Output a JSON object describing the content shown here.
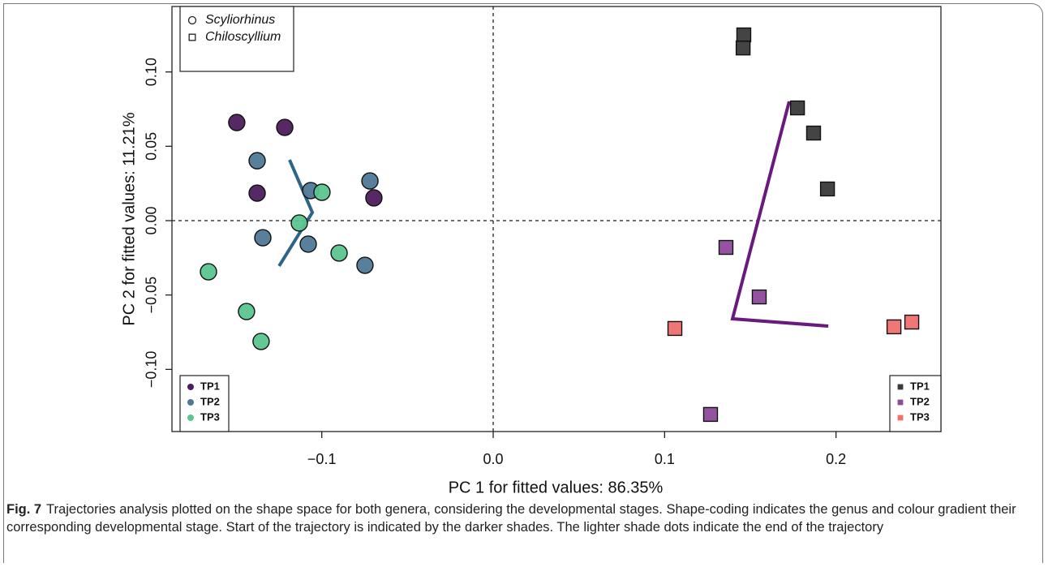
{
  "chart_data": {
    "type": "scatter",
    "xlabel": "PC 1 for fitted values: 86.35%",
    "ylabel": "PC 2 for fitted values: 11.21%",
    "xlim": [
      -0.1874,
      0.2612
    ],
    "ylim": [
      -0.1418,
      0.144
    ],
    "xticks": [
      {
        "value": -0.1,
        "label": "−0.1"
      },
      {
        "value": 0.0,
        "label": "0.0"
      },
      0.1,
      0.2
    ],
    "yticks": [
      {
        "value": -0.1,
        "label": "−0.10"
      },
      {
        "value": -0.05,
        "label": "−0.05"
      },
      {
        "value": 0.0,
        "label": "0.00"
      },
      0.05,
      {
        "value": 0.1,
        "label": "0.10"
      }
    ],
    "reference_lines": {
      "x": 0,
      "y": 0
    },
    "shape_legend": {
      "position": "top-left",
      "entries": [
        {
          "label": "Scyliorhinus",
          "marker": "circle"
        },
        {
          "label": "Chiloscyllium",
          "marker": "square"
        }
      ]
    },
    "stage_legend_positions": {
      "circle": "bottom-left",
      "square": "bottom-right"
    },
    "series": [
      {
        "name": "TP1",
        "marker": "circle",
        "color": "#4d1d5c",
        "x": [
          -0.1496,
          -0.1216,
          -0.1377,
          -0.0696
        ],
        "y": [
          0.066,
          0.0627,
          0.0185,
          0.0153
        ]
      },
      {
        "name": "TP2",
        "marker": "circle",
        "color": "#4f7897",
        "x": [
          -0.1377,
          -0.1065,
          -0.0719,
          -0.1344,
          -0.1079,
          -0.0748
        ],
        "y": [
          0.0403,
          0.0202,
          0.0267,
          -0.0115,
          -0.0158,
          -0.03
        ]
      },
      {
        "name": "TP3",
        "marker": "circle",
        "color": "#5cc58f",
        "x": [
          -0.0999,
          -0.1131,
          -0.0899,
          -0.1661,
          -0.1439,
          -0.1354
        ],
        "y": [
          0.0191,
          -0.0016,
          -0.0218,
          -0.0344,
          -0.0611,
          -0.0812
        ]
      },
      {
        "name": "TP1",
        "marker": "square",
        "color": "#3a3a3a",
        "x": [
          0.1462,
          0.1458,
          0.1775,
          0.1869,
          0.195
        ],
        "y": [
          0.1249,
          0.1161,
          0.0758,
          0.0589,
          0.0213
        ]
      },
      {
        "name": "TP2",
        "marker": "square",
        "color": "#8e4a9a",
        "x": [
          0.1358,
          0.1552,
          0.1268
        ],
        "y": [
          -0.018,
          -0.0513,
          -0.1303
        ]
      },
      {
        "name": "TP3",
        "marker": "square",
        "color": "#f07070",
        "x": [
          0.106,
          0.2338,
          0.2442
        ],
        "y": [
          -0.0725,
          -0.0714,
          -0.0682
        ]
      }
    ],
    "trajectories": [
      {
        "color": "#2d6488",
        "x": [
          -0.1188,
          -0.1055,
          -0.1249
        ],
        "y": [
          0.0409,
          0.0055,
          -0.0305
        ]
      },
      {
        "color": "#6a1a7f",
        "x": [
          0.1727,
          0.1396,
          0.1955
        ],
        "y": [
          0.0802,
          -0.066,
          -0.0709
        ]
      }
    ]
  },
  "caption": {
    "label": "Fig. 7",
    "text": "Trajectories analysis plotted on the shape space for both genera, considering the developmental stages. Shape-coding indicates the genus and colour gradient their corresponding developmental stage. Start of the trajectory is indicated by the darker shades. The lighter shade dots indicate the end of the trajectory"
  }
}
